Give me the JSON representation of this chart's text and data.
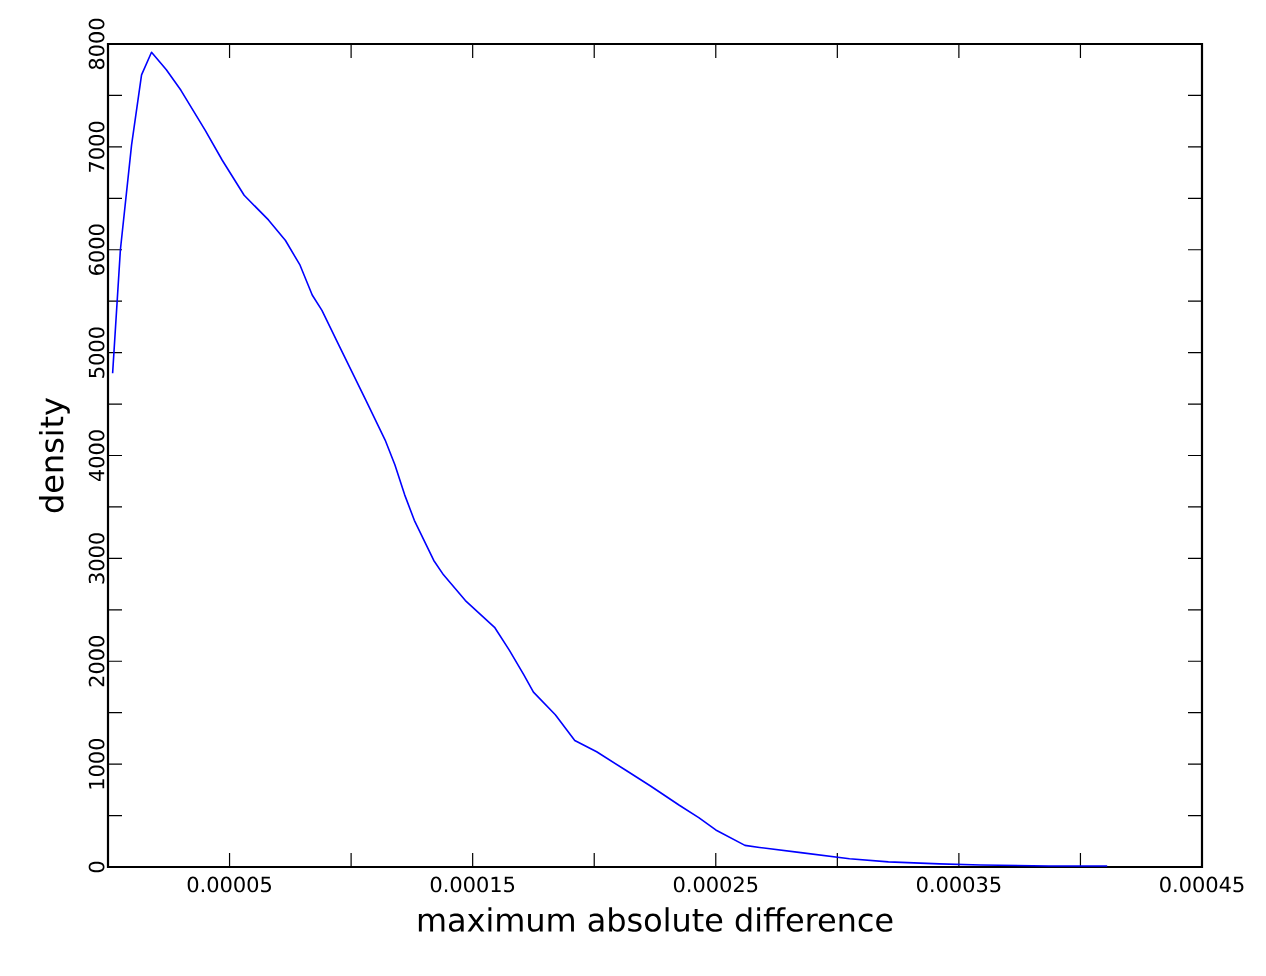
{
  "chart_data": {
    "type": "line",
    "xlabel": "maximum absolute difference",
    "ylabel": "density",
    "x": [
      1.9e-06,
      5.1e-06,
      9.7e-06,
      1.38e-05,
      1.79e-05,
      2.4e-05,
      3e-05,
      4e-05,
      4.7e-05,
      5.6e-05,
      6.6e-05,
      7.3e-05,
      7.9e-05,
      8.4e-05,
      8.8e-05,
      9.5e-05,
      0.000106,
      0.000114,
      0.000118,
      0.000122,
      0.000126,
      0.000134,
      0.000138,
      0.000147,
      0.000159,
      0.000165,
      0.000171,
      0.000175,
      0.000184,
      0.000192,
      0.000201,
      0.000213,
      0.000223,
      0.000235,
      0.000243,
      0.00025,
      0.000262,
      0.000268,
      0.000285,
      0.000305,
      0.000321,
      0.000342,
      0.000359,
      0.000387,
      0.000411
    ],
    "series": [
      {
        "color": "#0000ff",
        "values": [
          4800,
          6000,
          7020,
          7700,
          7920,
          7750,
          7550,
          7160,
          6870,
          6530,
          6290,
          6090,
          5850,
          5560,
          5410,
          5070,
          4540,
          4150,
          3910,
          3620,
          3370,
          2980,
          2840,
          2590,
          2330,
          2110,
          1870,
          1700,
          1480,
          1230,
          1120,
          940,
          790,
          600,
          480,
          360,
          210,
          190,
          140,
          80,
          50,
          30,
          20,
          10,
          10
        ]
      }
    ],
    "xlim": [
      0,
      0.00045
    ],
    "ylim": [
      0,
      8000
    ],
    "xticks": [
      {
        "value": 5e-05,
        "label": "0.00005"
      },
      {
        "value": 0.0001,
        "label": null
      },
      {
        "value": 0.00015,
        "label": "0.00015"
      },
      {
        "value": 0.0002,
        "label": null
      },
      {
        "value": 0.00025,
        "label": "0.00025"
      },
      {
        "value": 0.0003,
        "label": null
      },
      {
        "value": 0.00035,
        "label": "0.00035"
      },
      {
        "value": 0.0004,
        "label": null
      },
      {
        "value": 0.00045,
        "label": "0.00045"
      }
    ],
    "yticks": [
      0,
      {
        "value": 500,
        "label": null
      },
      1000,
      {
        "value": 1500,
        "label": null
      },
      2000,
      {
        "value": 2500,
        "label": null
      },
      3000,
      {
        "value": 3500,
        "label": null
      },
      4000,
      {
        "value": 4500,
        "label": null
      },
      5000,
      {
        "value": 5500,
        "label": null
      },
      6000,
      {
        "value": 6500,
        "label": null
      },
      7000,
      {
        "value": 7500,
        "label": null
      },
      8000
    ],
    "line_style": "solid"
  }
}
